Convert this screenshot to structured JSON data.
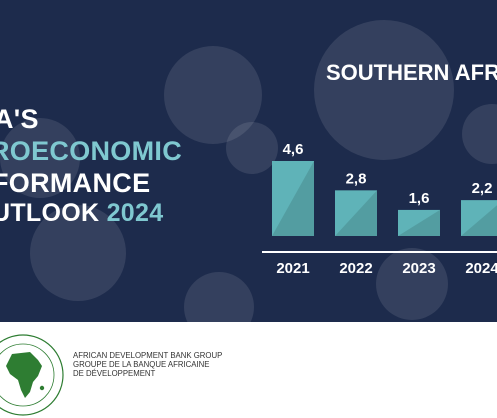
{
  "title": {
    "line1": "A'S",
    "line2": "ROECONOMIC",
    "line3": "FORMANCE",
    "line4": "UTLOOK",
    "line4_year": "2024"
  },
  "region_label": "SOUTHERN AFR",
  "colors": {
    "background": "#1d2b4c",
    "accent": "#7fc8d0",
    "bar": "#5fb3b8"
  },
  "chart_data": {
    "type": "bar",
    "categories": [
      "2021",
      "2022",
      "2023",
      "2024"
    ],
    "category_labels": [
      "2021",
      "2022",
      "2023",
      "2024"
    ],
    "values": [
      4.6,
      2.8,
      1.6,
      2.2
    ],
    "value_labels": [
      "4,6",
      "2,8",
      "1,6",
      "2,2"
    ],
    "ylim": [
      0,
      4.6
    ],
    "grid": false,
    "legend": "none"
  },
  "logo": {
    "english_name": "AFRICAN DEVELOPMENT BANK GROUP",
    "french_name_1": "GROUPE DE LA BANQUE AFRICAINE",
    "french_name_2": "DE DÉVELOPPEMENT",
    "icon": "africa-map-logo-icon"
  }
}
